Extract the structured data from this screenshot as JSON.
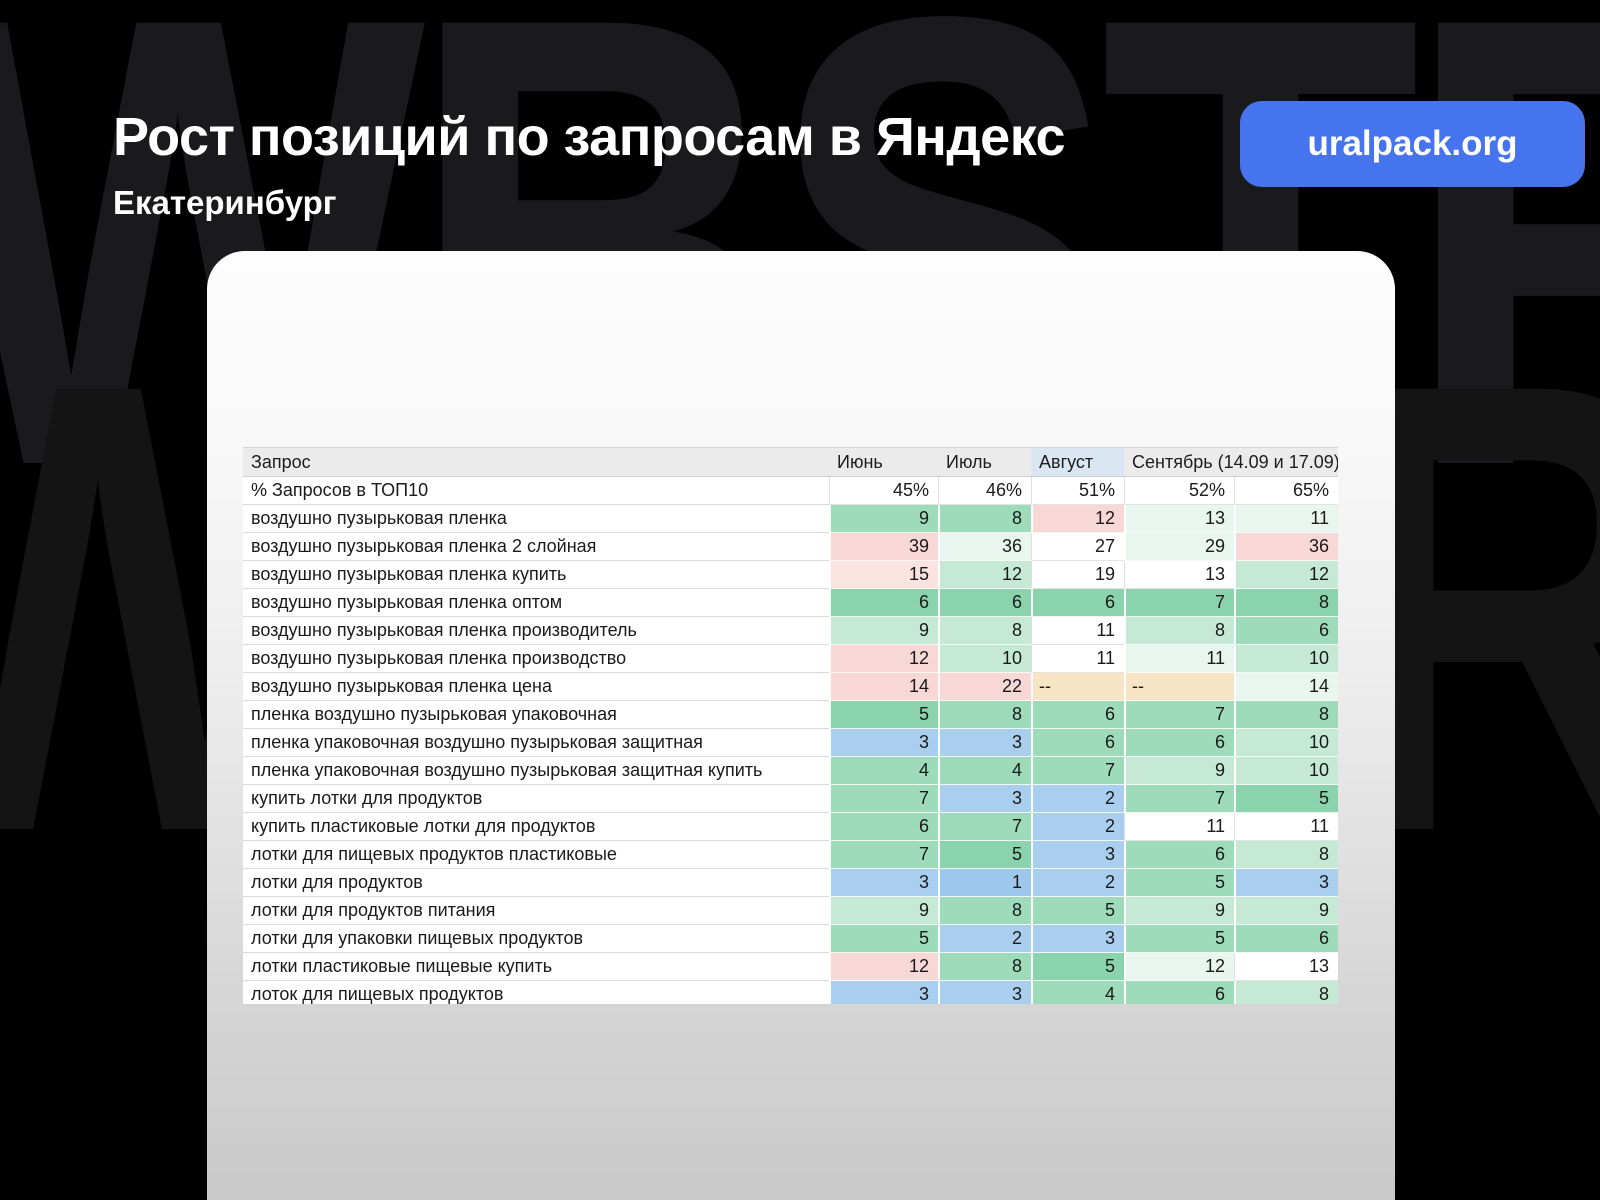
{
  "page": {
    "title": "Рост позиций по запросам в Яндекс",
    "subtitle": "Екатеринбург",
    "badge_label": "uralpack.org",
    "watermark_text": "WBSTR"
  },
  "colors": {
    "badge_bg": "#4674ee",
    "header_row_bg": "#ebebeb",
    "august_header_bg": "#dae6f2",
    "background": "#000000"
  },
  "palette": {
    "white": "#ffffff",
    "g1": "#8bd3ad",
    "g2": "#9edbba",
    "g3": "#c6e9d6",
    "g4": "#e9f5ef",
    "p1": "#f8d8d6",
    "p2": "#fae3e1",
    "b1": "#aacfee",
    "b2": "#9dc7ec",
    "tan": "#f6e4c5"
  },
  "table": {
    "columns": [
      "Запрос",
      "Июнь",
      "Июль",
      "Август",
      "Сентябрь (14.09 и 17.09)"
    ],
    "rows": [
      {
        "q": "% Запросов в ТОП10",
        "c": [
          {
            "v": "45%",
            "c": "white"
          },
          {
            "v": "46%",
            "c": "white"
          },
          {
            "v": "51%",
            "c": "white"
          },
          {
            "v": "52%",
            "c": "white"
          },
          {
            "v": "65%",
            "c": "white"
          }
        ]
      },
      {
        "q": "воздушно пузырьковая пленка",
        "c": [
          {
            "v": "9",
            "c": "g2"
          },
          {
            "v": "8",
            "c": "g2"
          },
          {
            "v": "12",
            "c": "p1"
          },
          {
            "v": "13",
            "c": "g4"
          },
          {
            "v": "11",
            "c": "g4"
          }
        ]
      },
      {
        "q": "воздушно пузырьковая пленка 2 слойная",
        "c": [
          {
            "v": "39",
            "c": "p1"
          },
          {
            "v": "36",
            "c": "g4"
          },
          {
            "v": "27",
            "c": "white"
          },
          {
            "v": "29",
            "c": "g4"
          },
          {
            "v": "36",
            "c": "p1"
          }
        ]
      },
      {
        "q": "воздушно пузырьковая пленка купить",
        "c": [
          {
            "v": "15",
            "c": "p2"
          },
          {
            "v": "12",
            "c": "g3"
          },
          {
            "v": "19",
            "c": "white"
          },
          {
            "v": "13",
            "c": "white"
          },
          {
            "v": "12",
            "c": "g3"
          }
        ]
      },
      {
        "q": "воздушно пузырьковая пленка оптом",
        "c": [
          {
            "v": "6",
            "c": "g1"
          },
          {
            "v": "6",
            "c": "g1"
          },
          {
            "v": "6",
            "c": "g1"
          },
          {
            "v": "7",
            "c": "g1"
          },
          {
            "v": "8",
            "c": "g1"
          }
        ]
      },
      {
        "q": "воздушно пузырьковая пленка производитель",
        "c": [
          {
            "v": "9",
            "c": "g3"
          },
          {
            "v": "8",
            "c": "g3"
          },
          {
            "v": "11",
            "c": "white"
          },
          {
            "v": "8",
            "c": "g3"
          },
          {
            "v": "6",
            "c": "g2"
          }
        ]
      },
      {
        "q": "воздушно пузырьковая пленка производство",
        "c": [
          {
            "v": "12",
            "c": "p1"
          },
          {
            "v": "10",
            "c": "g3"
          },
          {
            "v": "11",
            "c": "white"
          },
          {
            "v": "11",
            "c": "g4"
          },
          {
            "v": "10",
            "c": "g3"
          }
        ]
      },
      {
        "q": "воздушно пузырьковая пленка цена",
        "c": [
          {
            "v": "14",
            "c": "p1"
          },
          {
            "v": "22",
            "c": "p1"
          },
          {
            "v": "--",
            "c": "tan"
          },
          {
            "v": "--",
            "c": "tan"
          },
          {
            "v": "14",
            "c": "g4"
          }
        ]
      },
      {
        "q": "пленка воздушно пузырьковая упаковочная",
        "c": [
          {
            "v": "5",
            "c": "g1"
          },
          {
            "v": "8",
            "c": "g2"
          },
          {
            "v": "6",
            "c": "g2"
          },
          {
            "v": "7",
            "c": "g2"
          },
          {
            "v": "8",
            "c": "g2"
          }
        ]
      },
      {
        "q": "пленка упаковочная воздушно пузырьковая защитная",
        "c": [
          {
            "v": "3",
            "c": "b1"
          },
          {
            "v": "3",
            "c": "b1"
          },
          {
            "v": "6",
            "c": "g2"
          },
          {
            "v": "6",
            "c": "g2"
          },
          {
            "v": "10",
            "c": "g3"
          }
        ]
      },
      {
        "q": "пленка упаковочная воздушно пузырьковая защитная купить",
        "c": [
          {
            "v": "4",
            "c": "g2"
          },
          {
            "v": "4",
            "c": "g2"
          },
          {
            "v": "7",
            "c": "g2"
          },
          {
            "v": "9",
            "c": "g3"
          },
          {
            "v": "10",
            "c": "g3"
          }
        ]
      },
      {
        "q": "купить лотки для продуктов",
        "c": [
          {
            "v": "7",
            "c": "g2"
          },
          {
            "v": "3",
            "c": "b1"
          },
          {
            "v": "2",
            "c": "b1"
          },
          {
            "v": "7",
            "c": "g2"
          },
          {
            "v": "5",
            "c": "g1"
          }
        ]
      },
      {
        "q": "купить пластиковые лотки для продуктов",
        "c": [
          {
            "v": "6",
            "c": "g2"
          },
          {
            "v": "7",
            "c": "g2"
          },
          {
            "v": "2",
            "c": "b1"
          },
          {
            "v": "11",
            "c": "white"
          },
          {
            "v": "11",
            "c": "white"
          }
        ]
      },
      {
        "q": "лотки для пищевых продуктов пластиковые",
        "c": [
          {
            "v": "7",
            "c": "g2"
          },
          {
            "v": "5",
            "c": "g1"
          },
          {
            "v": "3",
            "c": "b1"
          },
          {
            "v": "6",
            "c": "g2"
          },
          {
            "v": "8",
            "c": "g3"
          }
        ]
      },
      {
        "q": "лотки для продуктов",
        "c": [
          {
            "v": "3",
            "c": "b1"
          },
          {
            "v": "1",
            "c": "b2"
          },
          {
            "v": "2",
            "c": "b1"
          },
          {
            "v": "5",
            "c": "g2"
          },
          {
            "v": "3",
            "c": "b1"
          }
        ]
      },
      {
        "q": "лотки для продуктов питания",
        "c": [
          {
            "v": "9",
            "c": "g3"
          },
          {
            "v": "8",
            "c": "g2"
          },
          {
            "v": "5",
            "c": "g2"
          },
          {
            "v": "9",
            "c": "g3"
          },
          {
            "v": "9",
            "c": "g3"
          }
        ]
      },
      {
        "q": "лотки для упаковки пищевых продуктов",
        "c": [
          {
            "v": "5",
            "c": "g2"
          },
          {
            "v": "2",
            "c": "b1"
          },
          {
            "v": "3",
            "c": "b1"
          },
          {
            "v": "5",
            "c": "g2"
          },
          {
            "v": "6",
            "c": "g2"
          }
        ]
      },
      {
        "q": "лотки пластиковые пищевые купить",
        "c": [
          {
            "v": "12",
            "c": "p1"
          },
          {
            "v": "8",
            "c": "g2"
          },
          {
            "v": "5",
            "c": "g1"
          },
          {
            "v": "12",
            "c": "g4"
          },
          {
            "v": "13",
            "c": "white"
          }
        ]
      },
      {
        "q": "лоток для пищевых продуктов",
        "c": [
          {
            "v": "3",
            "c": "b1"
          },
          {
            "v": "3",
            "c": "b1"
          },
          {
            "v": "4",
            "c": "g2"
          },
          {
            "v": "6",
            "c": "g2"
          },
          {
            "v": "8",
            "c": "g3"
          }
        ]
      }
    ]
  }
}
